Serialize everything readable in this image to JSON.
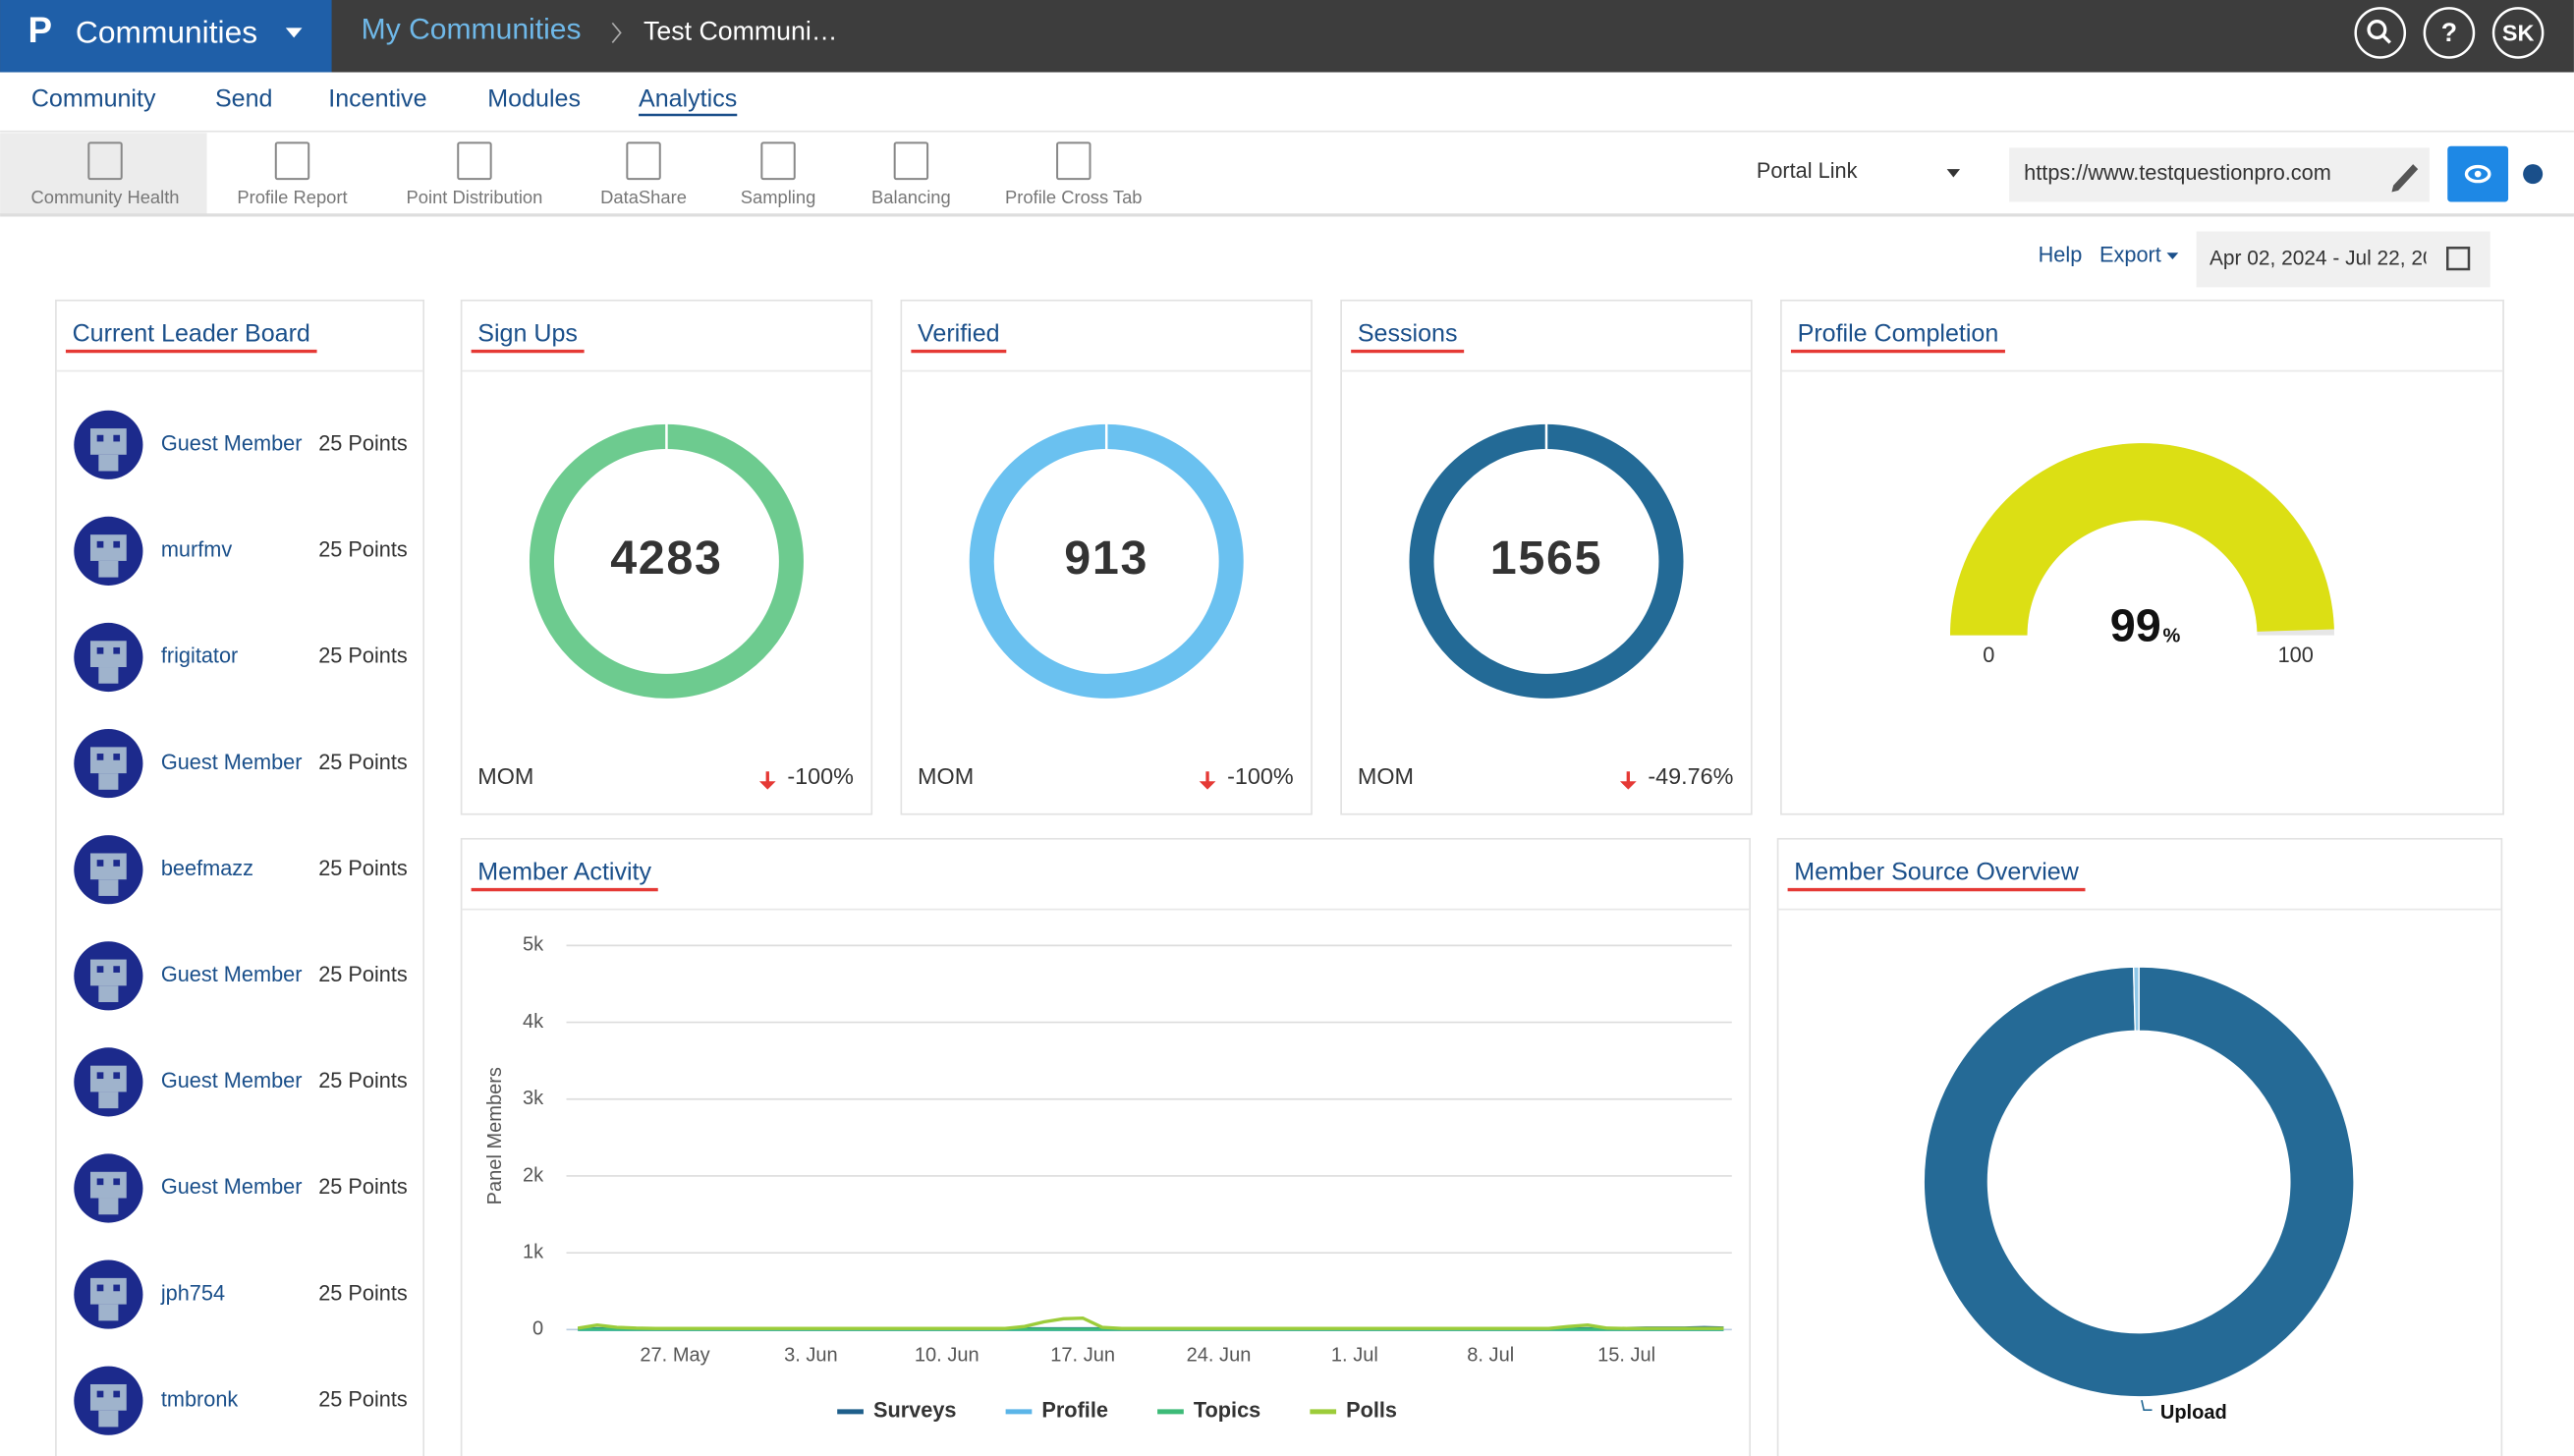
{
  "header": {
    "app": "Communities",
    "breadcrumb": [
      "My Communities",
      "Test Communi…"
    ],
    "help": "?",
    "user": "SK"
  },
  "nav": [
    "Community",
    "Send",
    "Incentive",
    "Modules",
    "Analytics"
  ],
  "tools": [
    "Community Health",
    "Profile Report",
    "Point Distribution",
    "DataShare",
    "Sampling",
    "Balancing",
    "Profile Cross Tab"
  ],
  "portal": {
    "label": "Portal Link",
    "url": "https://www.testquestionpro.com"
  },
  "toolbar": {
    "help": "Help",
    "export": "Export",
    "date_range": "Apr 02, 2024 - Jul 22, 20"
  },
  "leaderboard": {
    "title": "Current Leader Board",
    "rows": [
      {
        "name": "Guest Member",
        "points": "25 Points"
      },
      {
        "name": "murfmv",
        "points": "25 Points"
      },
      {
        "name": "frigitator",
        "points": "25 Points"
      },
      {
        "name": "Guest Member",
        "points": "25 Points"
      },
      {
        "name": "beefmazz",
        "points": "25 Points"
      },
      {
        "name": "Guest Member",
        "points": "25 Points"
      },
      {
        "name": "Guest Member",
        "points": "25 Points"
      },
      {
        "name": "Guest Member",
        "points": "25 Points"
      },
      {
        "name": "jph754",
        "points": "25 Points"
      },
      {
        "name": "tmbronk",
        "points": "25 Points"
      }
    ]
  },
  "kpis": [
    {
      "title": "Sign Ups",
      "value": 4283,
      "color": "#6dcb8f",
      "period": "MOM",
      "change": -100,
      "change_label": "-100%"
    },
    {
      "title": "Verified",
      "value": 913,
      "color": "#6ac1f0",
      "period": "MOM",
      "change": -100,
      "change_label": "-100%"
    },
    {
      "title": "Sessions",
      "value": 1565,
      "color": "#236a96",
      "period": "MOM",
      "change": -49.76,
      "change_label": "-49.76%"
    }
  ],
  "profile_completion": {
    "title": "Profile Completion",
    "value": 99,
    "unit": "%",
    "min": 0,
    "max": 100,
    "color": "#dcdf14"
  },
  "chart_data": [
    {
      "type": "line",
      "title": "Member Activity",
      "y_label": "Panel Members",
      "ylim": [
        0,
        5000
      ],
      "yticks": [
        0,
        {
          "value": 1000,
          "label": "1k"
        },
        {
          "value": 2000,
          "label": "2k"
        },
        {
          "value": 3000,
          "label": "3k"
        },
        {
          "value": 4000,
          "label": "4k"
        },
        {
          "value": 5000,
          "label": "5k"
        }
      ],
      "grid": true,
      "categories": [
        null,
        null,
        null,
        null,
        null,
        "27. May",
        null,
        null,
        null,
        null,
        null,
        null,
        "3. Jun",
        null,
        null,
        null,
        null,
        null,
        null,
        "10. Jun",
        null,
        null,
        null,
        null,
        null,
        null,
        "17. Jun",
        null,
        null,
        null,
        null,
        null,
        null,
        "24. Jun",
        null,
        null,
        null,
        null,
        null,
        null,
        "1. Jul",
        null,
        null,
        null,
        null,
        null,
        null,
        "8. Jul",
        null,
        null,
        null,
        null,
        null,
        null,
        "15. Jul",
        null,
        null,
        null,
        null,
        null
      ],
      "series": [
        {
          "name": "Surveys",
          "color": "#1f5f8b",
          "values": [
            10,
            10,
            10,
            10,
            10,
            10,
            10,
            10,
            10,
            10,
            10,
            10,
            10,
            10,
            10,
            10,
            10,
            10,
            10,
            10,
            10,
            10,
            10,
            10,
            10,
            10,
            10,
            10,
            10,
            10,
            10,
            10,
            10,
            10,
            10,
            10,
            10,
            10,
            10,
            10,
            10,
            10,
            10,
            10,
            10,
            10,
            10,
            10,
            10,
            10,
            10,
            10,
            10,
            10,
            15,
            20,
            20,
            20,
            25,
            20
          ]
        },
        {
          "name": "Profile",
          "color": "#5bb5e8",
          "values": [
            0,
            0,
            0,
            0,
            0,
            0,
            0,
            0,
            0,
            0,
            0,
            0,
            0,
            0,
            0,
            0,
            0,
            0,
            0,
            0,
            0,
            0,
            0,
            0,
            0,
            0,
            0,
            0,
            0,
            0,
            0,
            0,
            0,
            0,
            0,
            0,
            0,
            0,
            0,
            0,
            0,
            0,
            0,
            0,
            0,
            0,
            0,
            0,
            0,
            0,
            0,
            0,
            0,
            0,
            0,
            0,
            0,
            0,
            0,
            0
          ]
        },
        {
          "name": "Topics",
          "color": "#3dbb78",
          "values": [
            5,
            5,
            5,
            5,
            5,
            5,
            5,
            5,
            5,
            5,
            5,
            5,
            5,
            5,
            5,
            5,
            5,
            5,
            5,
            5,
            5,
            5,
            5,
            5,
            5,
            5,
            5,
            5,
            5,
            5,
            5,
            5,
            5,
            5,
            5,
            5,
            5,
            5,
            5,
            5,
            5,
            5,
            5,
            5,
            5,
            5,
            5,
            5,
            5,
            5,
            5,
            5,
            5,
            5,
            5,
            5,
            5,
            5,
            5,
            5
          ]
        },
        {
          "name": "Polls",
          "color": "#9ccc3a",
          "values": [
            20,
            60,
            30,
            20,
            15,
            15,
            15,
            15,
            15,
            15,
            15,
            15,
            15,
            15,
            15,
            15,
            15,
            15,
            15,
            15,
            15,
            15,
            15,
            40,
            100,
            140,
            150,
            30,
            15,
            15,
            15,
            15,
            15,
            15,
            15,
            15,
            15,
            15,
            15,
            15,
            15,
            15,
            15,
            15,
            15,
            15,
            15,
            15,
            15,
            15,
            15,
            40,
            60,
            20,
            15,
            15,
            15,
            15,
            15,
            15
          ]
        }
      ]
    },
    {
      "type": "pie",
      "title": "Member Source Overview",
      "categories": [
        "Upload",
        null
      ],
      "values": [
        99.6,
        0.4
      ],
      "colors": [
        "#256a96",
        "#8fc7e8"
      ]
    }
  ]
}
